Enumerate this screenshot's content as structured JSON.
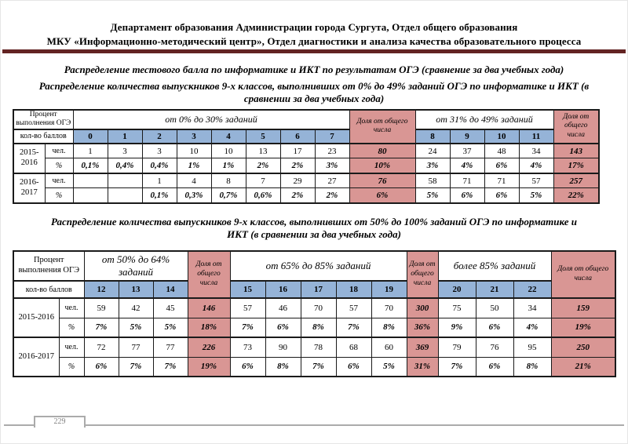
{
  "page": {
    "header_line1": "Департамент образования Администрации города Сургута, Отдел общего образования",
    "header_line2": "МКУ «Информационно-методический центр», Отдел диагностики и анализа качества образовательного процесса",
    "footer_page_number": "229"
  },
  "titles": {
    "main": "Распределение тестового балла по информатике и ИКТ по результатам ОГЭ (сравнение за два учебных года)",
    "table1": "Распределение количества выпускников 9-х классов, выполнивших от 0% до 49% заданий ОГЭ по информатике и ИКТ (в сравнении за два учебных года)",
    "table2": "Распределение количества выпускников 9-х классов, выполнивших от 50% до 100% заданий ОГЭ по информатике и ИКТ (в сравнении за два учебных года)"
  },
  "colors": {
    "accent_bar": "#632423",
    "score_header_blue": "#95B3D7",
    "share_pink": "#D99694"
  },
  "tables": [
    {
      "corner_label": "Процент выполнения ОГЭ",
      "scores_label": "кол-во баллов",
      "share_label": "Доля от общего числа",
      "people_label": "чел.",
      "percent_label": "%",
      "groups": [
        {
          "title": "от 0% до 30% заданий",
          "scores": [
            "0",
            "1",
            "2",
            "3",
            "4",
            "5",
            "6",
            "7"
          ]
        },
        {
          "title": "от 31% до 49% заданий",
          "scores": [
            "8",
            "9",
            "10",
            "11"
          ]
        }
      ],
      "years": [
        {
          "label": "2015-2016",
          "people": [
            [
              "1",
              "3",
              "3",
              "10",
              "10",
              "13",
              "17",
              "23"
            ],
            [
              "24",
              "37",
              "48",
              "34"
            ]
          ],
          "people_shares": [
            "80",
            "143"
          ],
          "percents": [
            [
              "0,1%",
              "0,4%",
              "0,4%",
              "1%",
              "1%",
              "2%",
              "2%",
              "3%"
            ],
            [
              "3%",
              "4%",
              "6%",
              "4%"
            ]
          ],
          "percent_shares": [
            "10%",
            "17%"
          ]
        },
        {
          "label": "2016-2017",
          "people": [
            [
              "",
              "",
              "1",
              "4",
              "8",
              "7",
              "29",
              "27"
            ],
            [
              "58",
              "71",
              "71",
              "57"
            ]
          ],
          "people_shares": [
            "76",
            "257"
          ],
          "percents": [
            [
              "",
              "",
              "0,1%",
              "0,3%",
              "0,7%",
              "0,6%",
              "2%",
              "2%"
            ],
            [
              "5%",
              "6%",
              "6%",
              "5%"
            ]
          ],
          "percent_shares": [
            "6%",
            "22%"
          ]
        }
      ]
    },
    {
      "corner_label": "Процент выполнения ОГЭ",
      "scores_label": "кол-во баллов",
      "share_label": "Доля от общего числа",
      "people_label": "чел.",
      "percent_label": "%",
      "groups": [
        {
          "title": "от 50% до 64% заданий",
          "scores": [
            "12",
            "13",
            "14"
          ]
        },
        {
          "title": "от 65% до 85% заданий",
          "scores": [
            "15",
            "16",
            "17",
            "18",
            "19"
          ]
        },
        {
          "title": "более 85% заданий",
          "scores": [
            "20",
            "21",
            "22"
          ]
        }
      ],
      "years": [
        {
          "label": "2015-2016",
          "people": [
            [
              "59",
              "42",
              "45"
            ],
            [
              "57",
              "46",
              "70",
              "57",
              "70"
            ],
            [
              "75",
              "50",
              "34"
            ]
          ],
          "people_shares": [
            "146",
            "300",
            "159"
          ],
          "percents": [
            [
              "7%",
              "5%",
              "5%"
            ],
            [
              "7%",
              "6%",
              "8%",
              "7%",
              "8%"
            ],
            [
              "9%",
              "6%",
              "4%"
            ]
          ],
          "percent_shares": [
            "18%",
            "36%",
            "19%"
          ]
        },
        {
          "label": "2016-2017",
          "people": [
            [
              "72",
              "77",
              "77"
            ],
            [
              "73",
              "90",
              "78",
              "68",
              "60"
            ],
            [
              "79",
              "76",
              "95"
            ]
          ],
          "people_shares": [
            "226",
            "369",
            "250"
          ],
          "percents": [
            [
              "6%",
              "7%",
              "7%"
            ],
            [
              "6%",
              "8%",
              "7%",
              "6%",
              "5%"
            ],
            [
              "7%",
              "6%",
              "8%"
            ]
          ],
          "percent_shares": [
            "19%",
            "31%",
            "21%"
          ]
        }
      ]
    }
  ]
}
